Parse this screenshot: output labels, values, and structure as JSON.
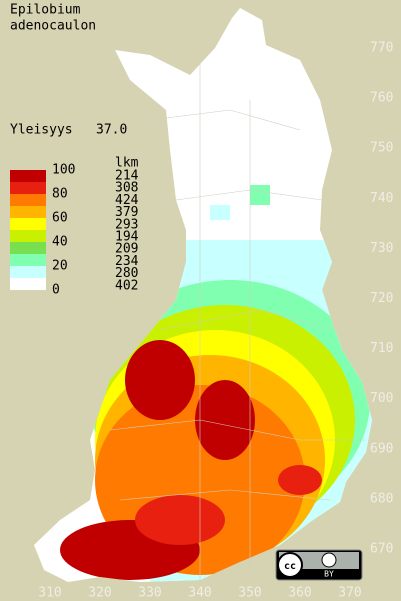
{
  "title": [
    "Epilobium",
    "adenocaulon"
  ],
  "index": {
    "label": "Yleisyys",
    "value": "37.0"
  },
  "legend": {
    "header": "lkm",
    "scale_labels": [
      100,
      80,
      60,
      40,
      20,
      0
    ],
    "colors": [
      "#c00000",
      "#e82010",
      "#ff7a00",
      "#ffb400",
      "#ffff00",
      "#c8f000",
      "#78e050",
      "#80ffb0",
      "#c8ffff",
      "#ffffff"
    ],
    "counts": [
      214,
      308,
      424,
      379,
      293,
      194,
      209,
      234,
      280,
      402
    ]
  },
  "axes": {
    "y_labels": [
      770,
      760,
      750,
      740,
      730,
      720,
      710,
      700,
      690,
      680,
      670
    ],
    "x_labels": [
      310,
      320,
      330,
      340,
      350,
      360,
      370
    ]
  },
  "license": "BY"
}
